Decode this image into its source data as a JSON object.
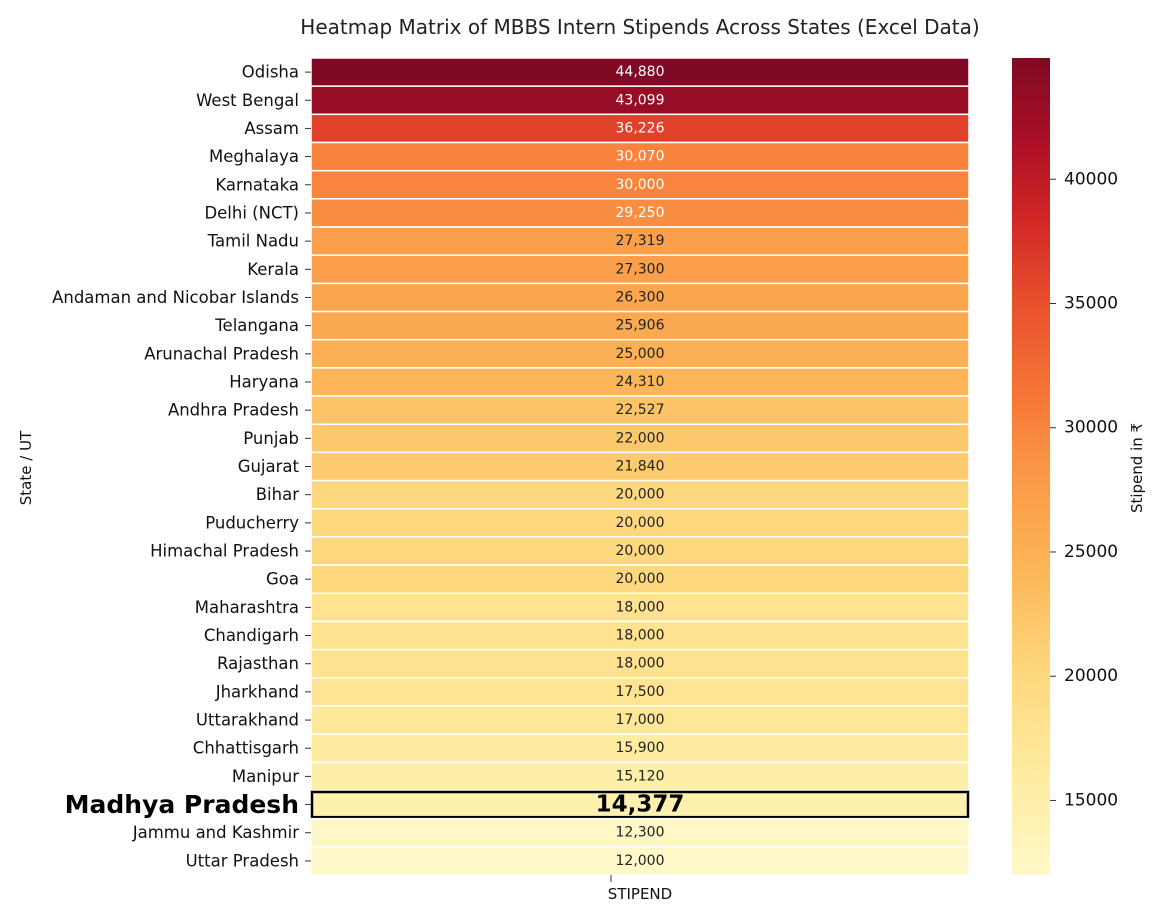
{
  "chart_data": {
    "type": "heatmap",
    "title": "Heatmap Matrix of MBBS Intern Stipends Across States (Excel Data)",
    "xlabel": "",
    "ylabel": "State / UT",
    "columns": [
      "STIPEND"
    ],
    "rows": [
      "Odisha",
      "West Bengal",
      "Assam",
      "Meghalaya",
      "Karnataka",
      "Delhi (NCT)",
      "Tamil Nadu",
      "Kerala",
      "Andaman and Nicobar Islands",
      "Telangana",
      "Arunachal Pradesh",
      "Haryana",
      "Andhra Pradesh",
      "Punjab",
      "Gujarat",
      "Bihar",
      "Puducherry",
      "Himachal Pradesh",
      "Goa",
      "Maharashtra",
      "Chandigarh",
      "Rajasthan",
      "Jharkhand",
      "Uttarakhand",
      "Chhattisgarh",
      "Manipur",
      "Madhya Pradesh",
      "Jammu and Kashmir",
      "Uttar Pradesh"
    ],
    "values": [
      44880,
      43099,
      36226,
      30070,
      30000,
      29250,
      27319,
      27300,
      26300,
      25906,
      25000,
      24310,
      22527,
      22000,
      21840,
      20000,
      20000,
      20000,
      20000,
      18000,
      18000,
      18000,
      17500,
      17000,
      15900,
      15120,
      14377,
      12300,
      12000
    ],
    "value_labels": [
      "44,880",
      "43,099",
      "36,226",
      "30,070",
      "30,000",
      "29,250",
      "27,319",
      "27,300",
      "26,300",
      "25,906",
      "25,000",
      "24,310",
      "22,527",
      "22,000",
      "21,840",
      "20,000",
      "20,000",
      "20,000",
      "20,000",
      "18,000",
      "18,000",
      "18,000",
      "17,500",
      "17,000",
      "15,900",
      "15,120",
      "14,377",
      "12,300",
      "12,000"
    ],
    "highlight_row": "Madhya Pradesh",
    "colorbar": {
      "label": "Stipend in ₹",
      "range": [
        12000,
        44880
      ],
      "ticks": [
        15000,
        20000,
        25000,
        30000,
        35000,
        40000
      ],
      "tick_labels": [
        "15000",
        "20000",
        "25000",
        "30000",
        "35000",
        "40000"
      ],
      "colormap": "YlOrRd"
    }
  }
}
